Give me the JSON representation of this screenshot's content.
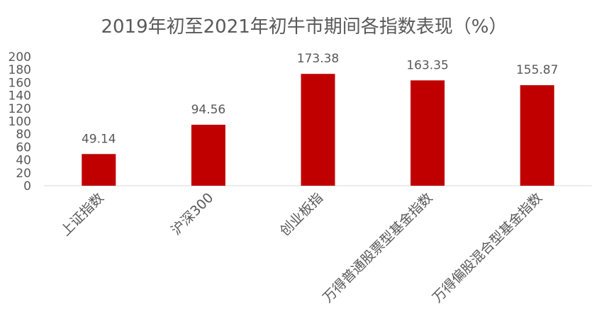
{
  "chart_data": {
    "type": "bar",
    "title": "2019年初至2021年初牛市期间各指数表现（%）",
    "categories": [
      "上证指数",
      "沪深300",
      "创业板指",
      "万得普通股票型基金指数",
      "万得偏股混合型基金指数"
    ],
    "values": [
      49.14,
      94.56,
      173.38,
      163.35,
      155.87
    ],
    "value_labels": [
      "49.14",
      "94.56",
      "173.38",
      "163.35",
      "155.87"
    ],
    "y_ticks": [
      "0",
      "20",
      "40",
      "60",
      "80",
      "100",
      "120",
      "140",
      "160",
      "180",
      "200"
    ],
    "ylim": [
      0,
      200
    ],
    "grid": false,
    "legend": "none",
    "bar_color": "#c00000",
    "text_color": "#595959",
    "title_color": "#595959",
    "axis_color": "#d9d9d9"
  }
}
